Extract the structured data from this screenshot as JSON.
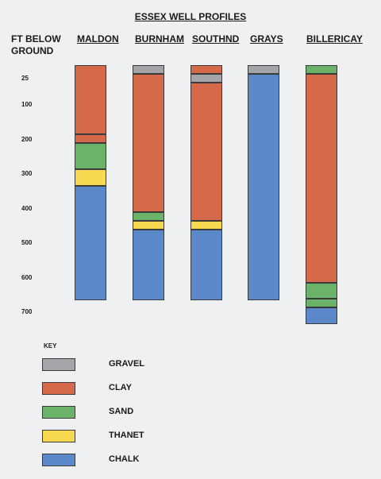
{
  "title": "ESSEX WELL PROFILES",
  "depth_axis_label": [
    "FT BELOW",
    "GROUND"
  ],
  "depth_ticks": [
    "25",
    "100",
    "200",
    "300",
    "400",
    "500",
    "600",
    "700"
  ],
  "key": {
    "title": "KEY",
    "items": [
      {
        "id": "gravel",
        "label": "GRAVEL",
        "color": "#a4a5a8"
      },
      {
        "id": "clay",
        "label": "CLAY",
        "color": "#d6694a"
      },
      {
        "id": "sand",
        "label": "SAND",
        "color": "#6cb36a"
      },
      {
        "id": "thanet",
        "label": "THANET",
        "color": "#f7d94f"
      },
      {
        "id": "chalk",
        "label": "CHALK",
        "color": "#5b88c9"
      }
    ]
  },
  "wells": [
    {
      "name": "MALDON",
      "layers": [
        {
          "type": "clay",
          "top_ft": 0,
          "bottom_ft": 200
        },
        {
          "type": "clay",
          "top_ft": 200,
          "bottom_ft": 225
        },
        {
          "type": "sand",
          "top_ft": 225,
          "bottom_ft": 300
        },
        {
          "type": "thanet",
          "top_ft": 300,
          "bottom_ft": 350
        },
        {
          "type": "chalk",
          "top_ft": 350,
          "bottom_ft": 680
        }
      ]
    },
    {
      "name": "BURNHAM",
      "layers": [
        {
          "type": "gravel",
          "top_ft": 0,
          "bottom_ft": 25
        },
        {
          "type": "clay",
          "top_ft": 25,
          "bottom_ft": 425
        },
        {
          "type": "sand",
          "top_ft": 425,
          "bottom_ft": 450
        },
        {
          "type": "thanet",
          "top_ft": 450,
          "bottom_ft": 475
        },
        {
          "type": "chalk",
          "top_ft": 475,
          "bottom_ft": 680
        }
      ]
    },
    {
      "name": "SOUTHND",
      "layers": [
        {
          "type": "clay",
          "top_ft": 0,
          "bottom_ft": 25
        },
        {
          "type": "gravel",
          "top_ft": 25,
          "bottom_ft": 50
        },
        {
          "type": "clay",
          "top_ft": 50,
          "bottom_ft": 450
        },
        {
          "type": "thanet",
          "top_ft": 450,
          "bottom_ft": 475
        },
        {
          "type": "chalk",
          "top_ft": 475,
          "bottom_ft": 680
        }
      ]
    },
    {
      "name": "GRAYS",
      "layers": [
        {
          "type": "gravel",
          "top_ft": 0,
          "bottom_ft": 25
        },
        {
          "type": "chalk",
          "top_ft": 25,
          "bottom_ft": 680
        }
      ]
    },
    {
      "name": "BILLERICAY",
      "layers": [
        {
          "type": "sand",
          "top_ft": 0,
          "bottom_ft": 25
        },
        {
          "type": "clay",
          "top_ft": 25,
          "bottom_ft": 630
        },
        {
          "type": "sand",
          "top_ft": 630,
          "bottom_ft": 675
        },
        {
          "type": "sand",
          "top_ft": 675,
          "bottom_ft": 700
        },
        {
          "type": "chalk",
          "top_ft": 700,
          "bottom_ft": 750
        }
      ]
    }
  ]
}
